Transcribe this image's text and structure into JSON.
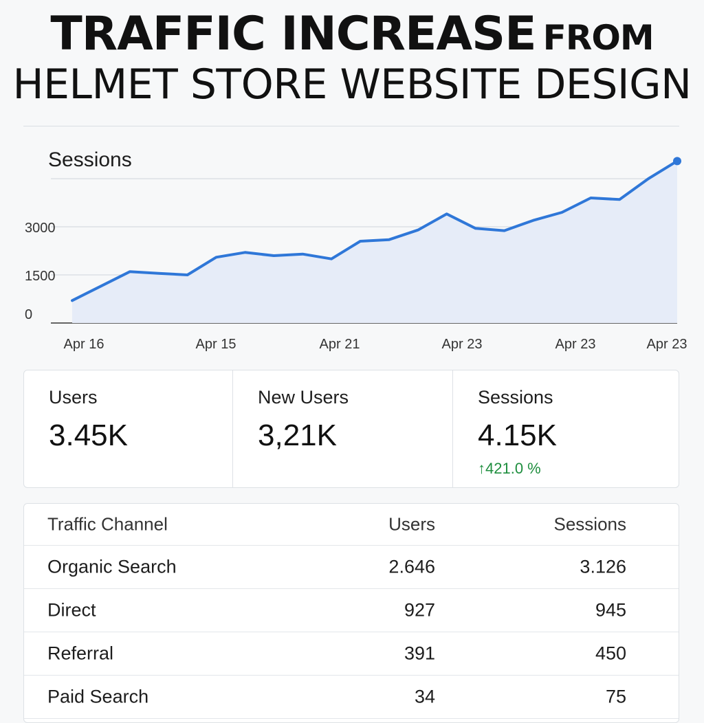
{
  "title": {
    "line1_main": "TRAFFIC INCREASE",
    "line1_tail": "FROM",
    "line2": "HELMET STORE WEBSITE DESIGN"
  },
  "chart_data": {
    "type": "area",
    "title": "Sessions",
    "ylabel": "Sessions",
    "xlabel": "",
    "ylim": [
      0,
      5250
    ],
    "yticks": [
      0,
      1500,
      3000
    ],
    "x_tick_labels": [
      "Apr 16",
      "Apr 15",
      "Apr 21",
      "Apr 23",
      "Apr 23",
      "Apr 23"
    ],
    "grid": true,
    "series": [
      {
        "name": "Sessions",
        "color": "#2f77d8",
        "values": [
          700,
          1150,
          1600,
          1550,
          1500,
          2050,
          2200,
          2100,
          2150,
          2000,
          2550,
          2600,
          2900,
          3400,
          2950,
          2880,
          3200,
          3450,
          3900,
          3850,
          4500,
          5050
        ]
      }
    ]
  },
  "stats": [
    {
      "label": "Users",
      "value": "3.45K"
    },
    {
      "label": "New Users",
      "value": "3,21K"
    },
    {
      "label": "Sessions",
      "value": "4.15K",
      "change": "↑421.0 %",
      "change_color": "#1e8e3e"
    }
  ],
  "table": {
    "headers": {
      "name": "Traffic Channel",
      "users": "Users",
      "sessions": "Sessions"
    },
    "rows": [
      {
        "name": "Organic Search",
        "users": "2.646",
        "sessions": "3.126"
      },
      {
        "name": "Direct",
        "users": "927",
        "sessions": "945"
      },
      {
        "name": "Referral",
        "users": "391",
        "sessions": "450"
      },
      {
        "name": "Paid Search",
        "users": "34",
        "sessions": "75"
      }
    ]
  }
}
